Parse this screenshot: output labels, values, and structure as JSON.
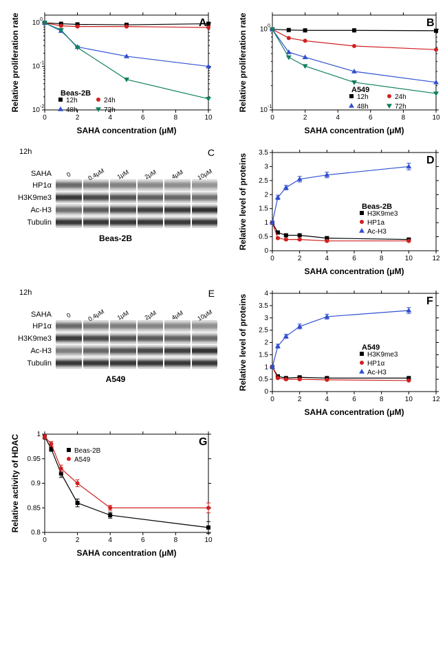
{
  "panels": {
    "A": {
      "label": "A",
      "cell_line": "Beas-2B",
      "xlabel": "SAHA concentration (μM)",
      "ylabel": "Relative proliferation rate",
      "xlim": [
        0,
        10
      ],
      "xtick_step": 2,
      "ylim": [
        0.01,
        1.5
      ],
      "yscale": "log",
      "legend_labels": [
        "12h",
        "24h",
        "48h",
        "72h"
      ],
      "series": [
        {
          "name": "12h",
          "marker": "square",
          "color": "#000000",
          "x": [
            0,
            1,
            2,
            5,
            10
          ],
          "y": [
            1.0,
            0.95,
            0.92,
            0.9,
            0.95
          ]
        },
        {
          "name": "24h",
          "marker": "circle",
          "color": "#d02020",
          "x": [
            0,
            1,
            2,
            5,
            10
          ],
          "y": [
            1.0,
            0.85,
            0.82,
            0.82,
            0.78
          ]
        },
        {
          "name": "48h",
          "marker": "triangle",
          "color": "#3050d0",
          "x": [
            0,
            1,
            2,
            5,
            10
          ],
          "y": [
            1.0,
            0.65,
            0.28,
            0.17,
            0.1
          ]
        },
        {
          "name": "72h",
          "marker": "down-triangle",
          "color": "#108060",
          "x": [
            0,
            1,
            2,
            5,
            10
          ],
          "y": [
            1.0,
            0.68,
            0.27,
            0.05,
            0.018
          ]
        }
      ],
      "title_fontsize": 10,
      "label_fontsize": 11,
      "tick_fontsize": 9,
      "line_width": 1.2,
      "marker_size": 5
    },
    "B": {
      "label": "B",
      "cell_line": "A549",
      "xlabel": "SAHA concentration (μM)",
      "ylabel": "Relative proliferation rate",
      "xlim": [
        0,
        10
      ],
      "xtick_step": 2,
      "ylim": [
        0.1,
        1.5
      ],
      "yscale": "log",
      "legend_labels": [
        "12h",
        "24h",
        "48h",
        "72h"
      ],
      "series": [
        {
          "name": "12h",
          "marker": "square",
          "color": "#000000",
          "x": [
            0,
            1,
            2,
            5,
            10
          ],
          "y": [
            1.0,
            0.98,
            0.97,
            0.97,
            0.96
          ]
        },
        {
          "name": "24h",
          "marker": "circle",
          "color": "#d02020",
          "x": [
            0,
            1,
            2,
            5,
            10
          ],
          "y": [
            1.0,
            0.78,
            0.72,
            0.62,
            0.56
          ]
        },
        {
          "name": "48h",
          "marker": "triangle",
          "color": "#3050d0",
          "x": [
            0,
            1,
            2,
            5,
            10
          ],
          "y": [
            1.0,
            0.52,
            0.45,
            0.3,
            0.22
          ]
        },
        {
          "name": "72h",
          "marker": "down-triangle",
          "color": "#108060",
          "x": [
            0,
            1,
            2,
            5,
            10
          ],
          "y": [
            1.0,
            0.45,
            0.35,
            0.22,
            0.16
          ]
        }
      ],
      "title_fontsize": 10,
      "label_fontsize": 11,
      "tick_fontsize": 9,
      "line_width": 1.2,
      "marker_size": 5
    },
    "C": {
      "label": "C",
      "time_label": "12h",
      "row_header": "SAHA",
      "concentrations": [
        "0",
        "0.4μM",
        "1μM",
        "2μM",
        "4μM",
        "10μM"
      ],
      "proteins": [
        "HP1α",
        "H3K9me3",
        "Ac-H3",
        "Tubulin"
      ],
      "cell_line": "Beas-2B",
      "band_colors": {
        "HP1α": [
          "#6b6b6b",
          "#7a7a7a",
          "#828282",
          "#8a8a8a",
          "#8f8f8f",
          "#959595"
        ],
        "H3K9me3": [
          "#3a3a3a",
          "#4a4a4a",
          "#555555",
          "#606060",
          "#686868",
          "#707070"
        ],
        "Ac-H3": [
          "#707070",
          "#5a5a5a",
          "#4a4a4a",
          "#3f3f3f",
          "#383838",
          "#303030"
        ],
        "Tubulin": [
          "#383838",
          "#383838",
          "#383838",
          "#383838",
          "#383838",
          "#383838"
        ]
      }
    },
    "D": {
      "label": "D",
      "cell_line": "Beas-2B",
      "xlabel": "SAHA concentration (μM)",
      "ylabel": "Relative level of proteins",
      "xlim": [
        0,
        12
      ],
      "xtick_step": 2,
      "ylim": [
        0,
        3.5
      ],
      "ytick_step": 0.5,
      "legend_labels": [
        "H3K9me3",
        "HP1a",
        "Ac-H3"
      ],
      "series": [
        {
          "name": "H3K9me3",
          "marker": "square",
          "color": "#000000",
          "x": [
            0,
            0.4,
            1,
            2,
            4,
            10
          ],
          "y": [
            1.0,
            0.65,
            0.55,
            0.55,
            0.45,
            0.4
          ],
          "err": [
            0.03,
            0.03,
            0.03,
            0.03,
            0.04,
            0.04
          ]
        },
        {
          "name": "HP1a",
          "marker": "circle",
          "color": "#d02020",
          "x": [
            0,
            0.4,
            1,
            2,
            4,
            10
          ],
          "y": [
            1.0,
            0.45,
            0.4,
            0.4,
            0.35,
            0.35
          ],
          "err": [
            0.03,
            0.03,
            0.03,
            0.03,
            0.03,
            0.03
          ]
        },
        {
          "name": "Ac-H3",
          "marker": "triangle",
          "color": "#3050d0",
          "x": [
            0,
            0.4,
            1,
            2,
            4,
            10
          ],
          "y": [
            1.0,
            1.9,
            2.25,
            2.55,
            2.7,
            3.0
          ],
          "err": [
            0.05,
            0.08,
            0.08,
            0.1,
            0.1,
            0.12
          ]
        }
      ],
      "line_width": 1.2,
      "marker_size": 5
    },
    "E": {
      "label": "E",
      "time_label": "12h",
      "row_header": "SAHA",
      "concentrations": [
        "0",
        "0.4μM",
        "1μM",
        "2μM",
        "4μM",
        "10μM"
      ],
      "proteins": [
        "HP1α",
        "H3K9me3",
        "Ac-H3",
        "Tubulin"
      ],
      "cell_line": "A549",
      "band_colors": {
        "HP1α": [
          "#6b6b6b",
          "#7a7a7a",
          "#7f7f7f",
          "#858585",
          "#8a8a8a",
          "#909090"
        ],
        "H3K9me3": [
          "#3a3a3a",
          "#4a4a4a",
          "#525252",
          "#5a5a5a",
          "#636363",
          "#6b6b6b"
        ],
        "Ac-H3": [
          "#808080",
          "#686868",
          "#555555",
          "#484848",
          "#3e3e3e",
          "#323232"
        ],
        "Tubulin": [
          "#383838",
          "#383838",
          "#383838",
          "#383838",
          "#383838",
          "#383838"
        ]
      }
    },
    "F": {
      "label": "F",
      "cell_line": "A549",
      "xlabel": "SAHA concentration (μM)",
      "ylabel": "Relative level of proteins",
      "xlim": [
        0,
        12
      ],
      "xtick_step": 2,
      "ylim": [
        0,
        4.0
      ],
      "ytick_step": 0.5,
      "legend_labels": [
        "H3K9me3",
        "HP1α",
        "Ac-H3"
      ],
      "series": [
        {
          "name": "H3K9me3",
          "marker": "square",
          "color": "#000000",
          "x": [
            0,
            0.4,
            1,
            2,
            4,
            10
          ],
          "y": [
            1.0,
            0.62,
            0.55,
            0.58,
            0.55,
            0.55
          ],
          "err": [
            0.03,
            0.04,
            0.04,
            0.04,
            0.04,
            0.04
          ]
        },
        {
          "name": "HP1α",
          "marker": "circle",
          "color": "#d02020",
          "x": [
            0,
            0.4,
            1,
            2,
            4,
            10
          ],
          "y": [
            1.0,
            0.55,
            0.5,
            0.5,
            0.48,
            0.45
          ],
          "err": [
            0.03,
            0.03,
            0.03,
            0.03,
            0.03,
            0.03
          ]
        },
        {
          "name": "Ac-H3",
          "marker": "triangle",
          "color": "#3050d0",
          "x": [
            0,
            0.4,
            1,
            2,
            4,
            10
          ],
          "y": [
            1.0,
            1.85,
            2.25,
            2.65,
            3.05,
            3.3
          ],
          "err": [
            0.05,
            0.08,
            0.08,
            0.1,
            0.1,
            0.12
          ]
        }
      ],
      "line_width": 1.2,
      "marker_size": 5
    },
    "G": {
      "label": "G",
      "xlabel": "SAHA concentration (μM)",
      "ylabel": "Relative activity of HDAC",
      "xlim": [
        0,
        10
      ],
      "xtick_step": 2,
      "ylim": [
        0.8,
        1.0
      ],
      "ytick_step": 0.05,
      "legend_labels": [
        "Beas-2B",
        "A549"
      ],
      "series": [
        {
          "name": "Beas-2B",
          "marker": "square",
          "color": "#000000",
          "x": [
            0,
            0.4,
            1,
            2,
            4,
            10
          ],
          "y": [
            0.995,
            0.97,
            0.92,
            0.86,
            0.835,
            0.81
          ],
          "err": [
            0.005,
            0.005,
            0.008,
            0.008,
            0.006,
            0.012
          ]
        },
        {
          "name": "A549",
          "marker": "circle",
          "color": "#d02020",
          "x": [
            0,
            0.4,
            1,
            2,
            4,
            10
          ],
          "y": [
            0.995,
            0.98,
            0.93,
            0.9,
            0.85,
            0.85
          ],
          "err": [
            0.004,
            0.005,
            0.007,
            0.007,
            0.005,
            0.01
          ]
        }
      ],
      "line_width": 1.2,
      "marker_size": 5
    }
  },
  "chart_style": {
    "plot_bg": "#ffffff",
    "axis_color": "#000000",
    "tick_len": 4,
    "font_family": "Arial"
  }
}
